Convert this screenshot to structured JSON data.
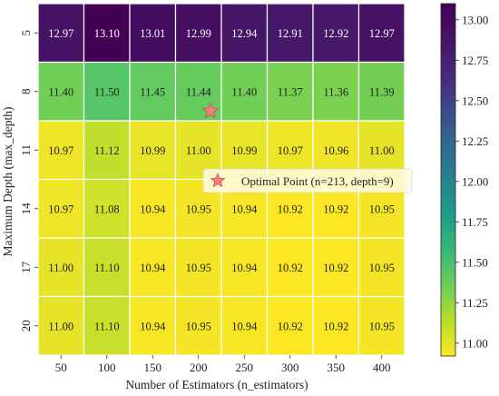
{
  "chart_data": {
    "type": "heatmap",
    "xlabel": "Number of Estimators (n_estimators)",
    "ylabel": "Maximum Depth (max_depth)",
    "x_categories": [
      "50",
      "100",
      "150",
      "200",
      "250",
      "300",
      "350",
      "400"
    ],
    "y_categories": [
      "5",
      "8",
      "11",
      "14",
      "17",
      "20"
    ],
    "values": [
      [
        12.97,
        13.1,
        13.01,
        12.99,
        12.94,
        12.91,
        12.92,
        12.97
      ],
      [
        11.4,
        11.5,
        11.45,
        11.44,
        11.4,
        11.37,
        11.36,
        11.39
      ],
      [
        10.97,
        11.12,
        10.99,
        11.0,
        10.99,
        10.97,
        10.96,
        11.0
      ],
      [
        10.97,
        11.08,
        10.94,
        10.95,
        10.94,
        10.92,
        10.92,
        10.95
      ],
      [
        11.0,
        11.1,
        10.94,
        10.95,
        10.94,
        10.92,
        10.92,
        10.95
      ],
      [
        11.0,
        11.1,
        10.94,
        10.95,
        10.94,
        10.92,
        10.92,
        10.95
      ]
    ],
    "colorscale": "viridis_r",
    "color_range": [
      10.92,
      13.1
    ],
    "colorbar_ticks": [
      "11.00",
      "11.25",
      "11.50",
      "11.75",
      "12.00",
      "12.25",
      "12.50",
      "12.75",
      "13.00"
    ],
    "colorbar_tick_values": [
      11.0,
      11.25,
      11.5,
      11.75,
      12.0,
      12.25,
      12.5,
      12.75,
      13.0
    ],
    "optimal_point": {
      "n_estimators": 213,
      "max_depth": 9,
      "marker_color": "#f08080"
    },
    "legend": {
      "label": "Optimal Point (n=213, depth=9)",
      "placement": "center-right"
    }
  }
}
